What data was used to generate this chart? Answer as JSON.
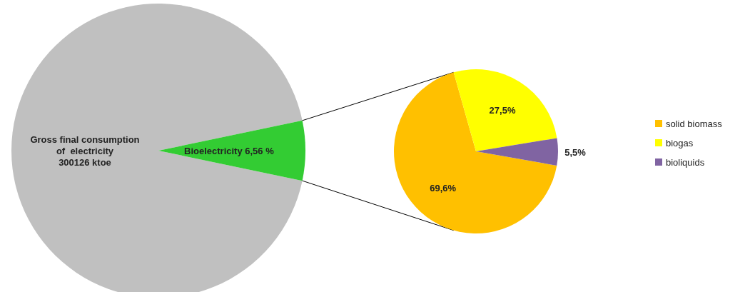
{
  "chart_data": [
    {
      "type": "pie",
      "categories": [
        "Gross final consumption\nof  electricity\n300126 ktoe",
        "Bioelectricity"
      ],
      "values": [
        93.44,
        6.56
      ],
      "value_labels": [
        null,
        "6,56 %"
      ],
      "colors": [
        "#c0c0c0",
        "#33cc33"
      ]
    },
    {
      "type": "pie",
      "categories": [
        "solid biomass",
        "biogas",
        "bioliquids"
      ],
      "values": [
        69.6,
        27.5,
        5.5
      ],
      "value_labels": [
        "69,6%",
        "27,5%",
        "5,5%"
      ],
      "colors": [
        "#ffc000",
        "#ffff00",
        "#8064a2"
      ],
      "legend": "right"
    }
  ]
}
